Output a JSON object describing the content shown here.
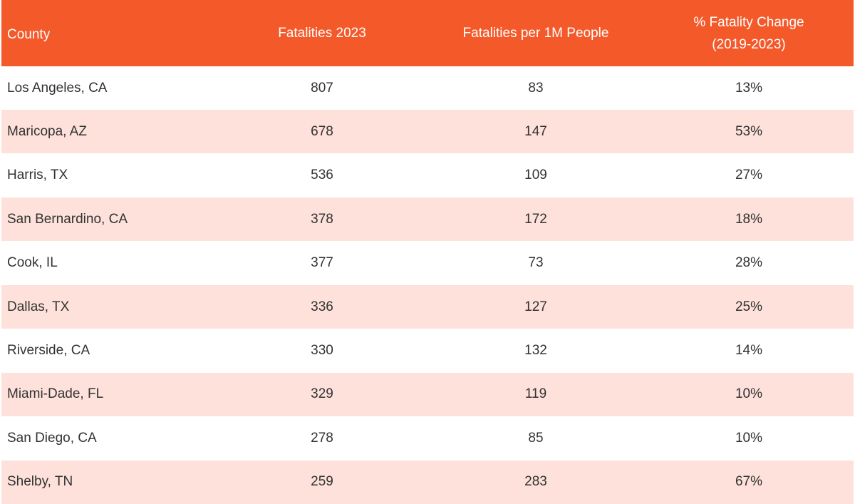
{
  "columns": [
    "County",
    "Fatalities 2023",
    "Fatalities per 1M People",
    "% Fatality Change\n(2019-2023)"
  ],
  "colors": {
    "header_bg": "#f4592a",
    "header_text": "#ffffff",
    "row_alt_bg": "#fde1da",
    "row_bg": "#ffffff",
    "body_text": "#333333"
  },
  "rows": [
    {
      "county": "Los Angeles, CA",
      "fatalities": "807",
      "per_million": "83",
      "change": "13%"
    },
    {
      "county": "Maricopa, AZ",
      "fatalities": "678",
      "per_million": "147",
      "change": "53%"
    },
    {
      "county": "Harris, TX",
      "fatalities": "536",
      "per_million": "109",
      "change": "27%"
    },
    {
      "county": "San Bernardino, CA",
      "fatalities": "378",
      "per_million": "172",
      "change": "18%"
    },
    {
      "county": "Cook, IL",
      "fatalities": "377",
      "per_million": "73",
      "change": "28%"
    },
    {
      "county": "Dallas, TX",
      "fatalities": "336",
      "per_million": "127",
      "change": "25%"
    },
    {
      "county": "Riverside, CA",
      "fatalities": "330",
      "per_million": "132",
      "change": "14%"
    },
    {
      "county": "Miami-Dade, FL",
      "fatalities": "329",
      "per_million": "119",
      "change": "10%"
    },
    {
      "county": "San Diego, CA",
      "fatalities": "278",
      "per_million": "85",
      "change": "10%"
    },
    {
      "county": "Shelby, TN",
      "fatalities": "259",
      "per_million": "283",
      "change": "67%"
    }
  ]
}
